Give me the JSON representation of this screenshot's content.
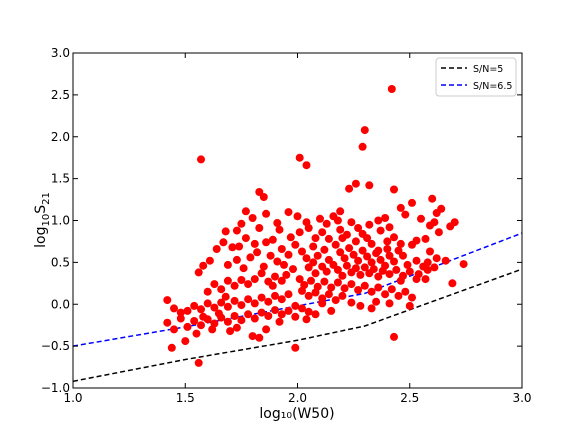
{
  "chart_data": {
    "type": "scatter",
    "xlabel": "log₁₀(W50)",
    "ylabel_main": "log",
    "ylabel_sub1": "10",
    "ylabel_s": "S",
    "ylabel_sub2": "21",
    "xlim": [
      1.0,
      3.0
    ],
    "ylim": [
      -1.0,
      3.0
    ],
    "xticks": [
      1.0,
      1.5,
      2.0,
      2.5,
      3.0
    ],
    "xtick_labels": [
      "1.0",
      "1.5",
      "2.0",
      "2.5",
      "3.0"
    ],
    "yticks": [
      -1.0,
      -0.5,
      0.0,
      0.5,
      1.0,
      1.5,
      2.0,
      2.5,
      3.0
    ],
    "ytick_labels": [
      "−1.0",
      "−0.5",
      "0.0",
      "0.5",
      "1.0",
      "1.5",
      "2.0",
      "2.5",
      "3.0"
    ],
    "grid": false,
    "legend_position": "top-right",
    "lines": [
      {
        "name": "S/N=5",
        "color": "#000000",
        "dash": "dashed",
        "x": [
          1.0,
          1.5,
          2.0,
          2.3,
          3.0
        ],
        "y": [
          -0.92,
          -0.66,
          -0.43,
          -0.26,
          0.42
        ]
      },
      {
        "name": "S/N=6.5",
        "color": "#0000ff",
        "dash": "dashed",
        "x": [
          1.0,
          1.5,
          2.0,
          2.3,
          3.0
        ],
        "y": [
          -0.5,
          -0.27,
          -0.02,
          0.13,
          0.85
        ]
      }
    ],
    "scatter_color": "#ff0000",
    "points": [
      [
        2.42,
        2.57
      ],
      [
        2.3,
        2.08
      ],
      [
        2.29,
        1.88
      ],
      [
        2.01,
        1.75
      ],
      [
        2.04,
        1.66
      ],
      [
        1.57,
        1.73
      ],
      [
        2.26,
        1.44
      ],
      [
        2.23,
        1.38
      ],
      [
        2.32,
        1.42
      ],
      [
        2.43,
        1.37
      ],
      [
        1.83,
        1.34
      ],
      [
        1.85,
        1.28
      ],
      [
        1.77,
        1.11
      ],
      [
        2.51,
        1.21
      ],
      [
        2.6,
        1.26
      ],
      [
        2.64,
        1.14
      ],
      [
        2.62,
        1.09
      ],
      [
        2.46,
        1.15
      ],
      [
        2.48,
        1.07
      ],
      [
        2.55,
        1.02
      ],
      [
        2.39,
        1.03
      ],
      [
        2.32,
        0.95
      ],
      [
        2.36,
        1.0
      ],
      [
        2.18,
        1.0
      ],
      [
        2.24,
        0.98
      ],
      [
        2.04,
        0.98
      ],
      [
        2.1,
        1.02
      ],
      [
        2.19,
        1.11
      ],
      [
        2.16,
        1.05
      ],
      [
        1.96,
        1.1
      ],
      [
        2.0,
        1.05
      ],
      [
        1.86,
        1.08
      ],
      [
        1.8,
        1.03
      ],
      [
        1.75,
        0.96
      ],
      [
        1.83,
        0.91
      ],
      [
        1.73,
        0.88
      ],
      [
        1.68,
        0.87
      ],
      [
        2.7,
        0.98
      ],
      [
        2.68,
        0.93
      ],
      [
        2.61,
        0.98
      ],
      [
        2.59,
        0.94
      ],
      [
        2.63,
        0.86
      ],
      [
        2.57,
        0.78
      ],
      [
        2.53,
        0.76
      ],
      [
        2.51,
        0.71
      ],
      [
        2.46,
        0.72
      ],
      [
        2.43,
        0.8
      ],
      [
        2.41,
        0.92
      ],
      [
        2.45,
        0.64
      ],
      [
        2.41,
        0.58
      ],
      [
        2.36,
        0.64
      ],
      [
        2.33,
        0.72
      ],
      [
        2.29,
        0.84
      ],
      [
        2.27,
        0.91
      ],
      [
        2.26,
        0.75
      ],
      [
        2.22,
        0.83
      ],
      [
        2.19,
        0.89
      ],
      [
        2.14,
        0.78
      ],
      [
        2.11,
        0.86
      ],
      [
        2.08,
        0.79
      ],
      [
        2.05,
        0.91
      ],
      [
        2.01,
        0.86
      ],
      [
        1.97,
        0.8
      ],
      [
        1.92,
        0.89
      ],
      [
        1.89,
        0.77
      ],
      [
        1.86,
        0.74
      ],
      [
        1.81,
        0.72
      ],
      [
        1.77,
        0.79
      ],
      [
        1.74,
        0.69
      ],
      [
        1.71,
        0.68
      ],
      [
        1.67,
        0.74
      ],
      [
        1.64,
        0.66
      ],
      [
        1.61,
        0.52
      ],
      [
        1.58,
        0.46
      ],
      [
        1.56,
        0.38
      ],
      [
        1.69,
        0.47
      ],
      [
        1.73,
        0.53
      ],
      [
        1.76,
        0.43
      ],
      [
        1.79,
        0.56
      ],
      [
        1.82,
        0.62
      ],
      [
        1.85,
        0.45
      ],
      [
        1.88,
        0.58
      ],
      [
        1.91,
        0.51
      ],
      [
        1.93,
        0.66
      ],
      [
        1.96,
        0.59
      ],
      [
        1.99,
        0.71
      ],
      [
        2.02,
        0.63
      ],
      [
        2.04,
        0.55
      ],
      [
        2.07,
        0.69
      ],
      [
        2.09,
        0.58
      ],
      [
        2.12,
        0.65
      ],
      [
        2.14,
        0.53
      ],
      [
        2.17,
        0.71
      ],
      [
        2.19,
        0.62
      ],
      [
        2.21,
        0.55
      ],
      [
        2.23,
        0.67
      ],
      [
        2.25,
        0.59
      ],
      [
        2.27,
        0.52
      ],
      [
        2.29,
        0.64
      ],
      [
        2.31,
        0.57
      ],
      [
        2.33,
        0.5
      ],
      [
        2.35,
        0.61
      ],
      [
        2.37,
        0.53
      ],
      [
        2.39,
        0.46
      ],
      [
        2.4,
        0.66
      ],
      [
        2.43,
        0.51
      ],
      [
        2.47,
        0.58
      ],
      [
        2.49,
        0.47
      ],
      [
        2.53,
        0.52
      ],
      [
        2.56,
        0.45
      ],
      [
        2.58,
        0.5
      ],
      [
        2.62,
        0.55
      ],
      [
        2.66,
        0.52
      ],
      [
        2.59,
        0.63
      ],
      [
        2.05,
        0.44
      ],
      [
        2.08,
        0.37
      ],
      [
        2.11,
        0.45
      ],
      [
        2.13,
        0.39
      ],
      [
        2.16,
        0.47
      ],
      [
        2.18,
        0.41
      ],
      [
        2.2,
        0.34
      ],
      [
        2.22,
        0.46
      ],
      [
        2.24,
        0.38
      ],
      [
        2.26,
        0.43
      ],
      [
        2.28,
        0.35
      ],
      [
        2.3,
        0.44
      ],
      [
        2.32,
        0.37
      ],
      [
        2.34,
        0.42
      ],
      [
        2.36,
        0.33
      ],
      [
        2.38,
        0.4
      ],
      [
        2.41,
        0.36
      ],
      [
        2.44,
        0.41
      ],
      [
        2.47,
        0.34
      ],
      [
        2.5,
        0.39
      ],
      [
        2.54,
        0.36
      ],
      [
        1.98,
        0.42
      ],
      [
        1.95,
        0.35
      ],
      [
        1.93,
        0.28
      ],
      [
        1.9,
        0.33
      ],
      [
        1.87,
        0.27
      ],
      [
        1.84,
        0.37
      ],
      [
        1.81,
        0.3
      ],
      [
        1.78,
        0.24
      ],
      [
        1.75,
        0.29
      ],
      [
        1.72,
        0.22
      ],
      [
        1.69,
        0.28
      ],
      [
        1.66,
        0.18
      ],
      [
        1.63,
        0.24
      ],
      [
        1.6,
        0.15
      ],
      [
        2.01,
        0.3
      ],
      [
        2.03,
        0.23
      ],
      [
        2.06,
        0.28
      ],
      [
        2.09,
        0.21
      ],
      [
        2.12,
        0.27
      ],
      [
        2.15,
        0.2
      ],
      [
        2.18,
        0.26
      ],
      [
        2.21,
        0.19
      ],
      [
        2.24,
        0.24
      ],
      [
        2.27,
        0.17
      ],
      [
        2.3,
        0.22
      ],
      [
        2.33,
        0.15
      ],
      [
        2.36,
        0.2
      ],
      [
        2.39,
        0.12
      ],
      [
        2.42,
        0.18
      ],
      [
        2.45,
        0.1
      ],
      [
        2.48,
        0.15
      ],
      [
        2.51,
        0.08
      ],
      [
        2.02,
        0.16
      ],
      [
        2.05,
        0.1
      ],
      [
        2.08,
        0.14
      ],
      [
        2.11,
        0.07
      ],
      [
        2.14,
        0.12
      ],
      [
        2.17,
        0.05
      ],
      [
        2.2,
        0.1
      ],
      [
        1.96,
        0.12
      ],
      [
        1.93,
        0.06
      ],
      [
        1.9,
        0.1
      ],
      [
        1.87,
        0.03
      ],
      [
        1.84,
        0.08
      ],
      [
        1.81,
        0.01
      ],
      [
        1.78,
        0.06
      ],
      [
        1.75,
        -0.01
      ],
      [
        1.72,
        0.04
      ],
      [
        1.69,
        -0.03
      ],
      [
        1.66,
        0.02
      ],
      [
        1.63,
        -0.04
      ],
      [
        1.6,
        0.01
      ],
      [
        1.57,
        -0.06
      ],
      [
        1.54,
        -0.02
      ],
      [
        1.51,
        -0.08
      ],
      [
        1.48,
        -0.1
      ],
      [
        1.45,
        -0.05
      ],
      [
        1.42,
        0.05
      ],
      [
        1.99,
        -0.02
      ],
      [
        2.02,
        -0.05
      ],
      [
        2.05,
        -0.09
      ],
      [
        1.96,
        -0.08
      ],
      [
        1.93,
        -0.12
      ],
      [
        1.9,
        -0.07
      ],
      [
        1.87,
        -0.14
      ],
      [
        1.84,
        -0.1
      ],
      [
        1.81,
        -0.17
      ],
      [
        1.78,
        -0.12
      ],
      [
        1.75,
        -0.19
      ],
      [
        1.72,
        -0.14
      ],
      [
        1.69,
        -0.21
      ],
      [
        1.66,
        -0.16
      ],
      [
        1.63,
        -0.23
      ],
      [
        1.6,
        -0.18
      ],
      [
        1.57,
        -0.25
      ],
      [
        1.54,
        -0.2
      ],
      [
        1.51,
        -0.27
      ],
      [
        1.48,
        -0.17
      ],
      [
        1.45,
        -0.3
      ],
      [
        1.42,
        -0.22
      ],
      [
        1.99,
        -0.15
      ],
      [
        2.04,
        -0.18
      ],
      [
        2.08,
        -0.12
      ],
      [
        2.28,
        -0.02
      ],
      [
        2.35,
        0.03
      ],
      [
        2.41,
        0.01
      ],
      [
        2.5,
        -0.02
      ],
      [
        1.86,
        -0.3
      ],
      [
        1.8,
        -0.38
      ],
      [
        1.83,
        -0.4
      ],
      [
        1.7,
        -0.32
      ],
      [
        1.62,
        -0.3
      ],
      [
        1.55,
        -0.35
      ],
      [
        1.5,
        -0.44
      ],
      [
        1.44,
        -0.52
      ],
      [
        1.56,
        -0.7
      ],
      [
        1.99,
        -0.52
      ],
      [
        2.43,
        -0.39
      ],
      [
        2.74,
        0.48
      ],
      [
        2.69,
        0.25
      ],
      [
        2.33,
        -0.05
      ],
      [
        2.24,
        0.02
      ],
      [
        2.15,
        -0.08
      ],
      [
        2.11,
        0.01
      ],
      [
        1.92,
        -0.21
      ],
      [
        1.73,
        -0.28
      ],
      [
        1.65,
        -0.11
      ],
      [
        1.58,
        -0.15
      ],
      [
        1.68,
        0.09
      ],
      [
        1.94,
        0.47
      ],
      [
        1.89,
        0.22
      ],
      [
        2.07,
        0.5
      ],
      [
        2.31,
        0.79
      ],
      [
        2.37,
        0.88
      ],
      [
        2.2,
        0.79
      ],
      [
        2.13,
        0.96
      ],
      [
        1.91,
        0.97
      ],
      [
        2.46,
        0.28
      ],
      [
        2.53,
        0.3
      ],
      [
        2.57,
        0.3
      ],
      [
        2.61,
        0.44
      ],
      [
        2.58,
        0.41
      ],
      [
        2.4,
        0.75
      ]
    ]
  }
}
